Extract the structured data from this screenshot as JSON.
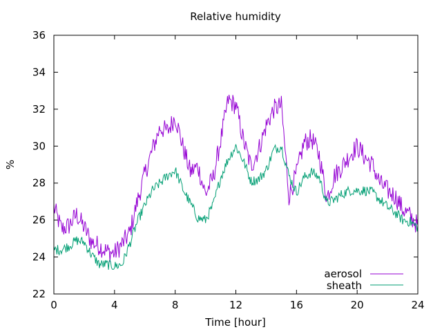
{
  "chart_data": {
    "type": "line",
    "title": "Relative humidity",
    "xlabel": "Time [hour]",
    "ylabel": "%",
    "xlim": [
      0,
      24
    ],
    "ylim": [
      22,
      36
    ],
    "xticks": [
      0,
      4,
      8,
      12,
      16,
      20,
      24
    ],
    "yticks": [
      22,
      24,
      26,
      28,
      30,
      32,
      34,
      36
    ],
    "grid": false,
    "legend_position": "bottom-right",
    "series": [
      {
        "name": "aerosol",
        "color": "#9400d3",
        "x": [
          0,
          0.5,
          1,
          1.5,
          2,
          2.5,
          3,
          3.5,
          4,
          4.5,
          5,
          5.5,
          6,
          6.5,
          7,
          7.5,
          8,
          8.5,
          9,
          9.5,
          10,
          10.5,
          11,
          11.5,
          12,
          12.5,
          13,
          13.5,
          14,
          14.5,
          15,
          15.5,
          16,
          16.5,
          17,
          17.5,
          18,
          18.5,
          19,
          19.5,
          20,
          20.5,
          21,
          21.5,
          22,
          22.5,
          23,
          23.5,
          24
        ],
        "values": [
          26.7,
          25.5,
          25.7,
          26.3,
          25.6,
          24.8,
          24.6,
          24.3,
          24.2,
          24.7,
          25.3,
          27.0,
          28.5,
          29.8,
          31.0,
          30.8,
          31.6,
          30.0,
          28.6,
          28.9,
          27.4,
          28.3,
          30.3,
          32.5,
          32.2,
          30.3,
          28.9,
          29.8,
          31.1,
          32.0,
          32.2,
          27.3,
          28.5,
          30.2,
          30.4,
          29.5,
          27.2,
          28.4,
          28.9,
          29.5,
          30.0,
          29.4,
          29.0,
          28.0,
          27.6,
          27.3,
          26.6,
          26.2,
          25.7
        ]
      },
      {
        "name": "sheath",
        "color": "#009e73",
        "x": [
          0,
          0.5,
          1,
          1.5,
          2,
          2.5,
          3,
          3.5,
          4,
          4.5,
          5,
          5.5,
          6,
          6.5,
          7,
          7.5,
          8,
          8.5,
          9,
          9.5,
          10,
          10.5,
          11,
          11.5,
          12,
          12.5,
          13,
          13.5,
          14,
          14.5,
          15,
          15.5,
          16,
          16.5,
          17,
          17.5,
          18,
          18.5,
          19,
          19.5,
          20,
          20.5,
          21,
          21.5,
          22,
          22.5,
          23,
          23.5,
          24
        ],
        "values": [
          24.4,
          24.4,
          24.6,
          24.9,
          24.8,
          24.1,
          23.6,
          23.6,
          23.5,
          23.6,
          24.7,
          25.9,
          26.8,
          27.6,
          28.0,
          28.4,
          28.7,
          27.7,
          26.9,
          26.1,
          26.0,
          26.8,
          28.3,
          29.3,
          30.0,
          29.2,
          28.1,
          28.2,
          28.7,
          29.8,
          30.0,
          28.4,
          27.5,
          28.3,
          28.6,
          28.3,
          26.9,
          27.1,
          27.4,
          27.6,
          27.6,
          27.6,
          27.5,
          27.1,
          26.7,
          26.4,
          26.0,
          25.9,
          25.6
        ]
      }
    ]
  }
}
